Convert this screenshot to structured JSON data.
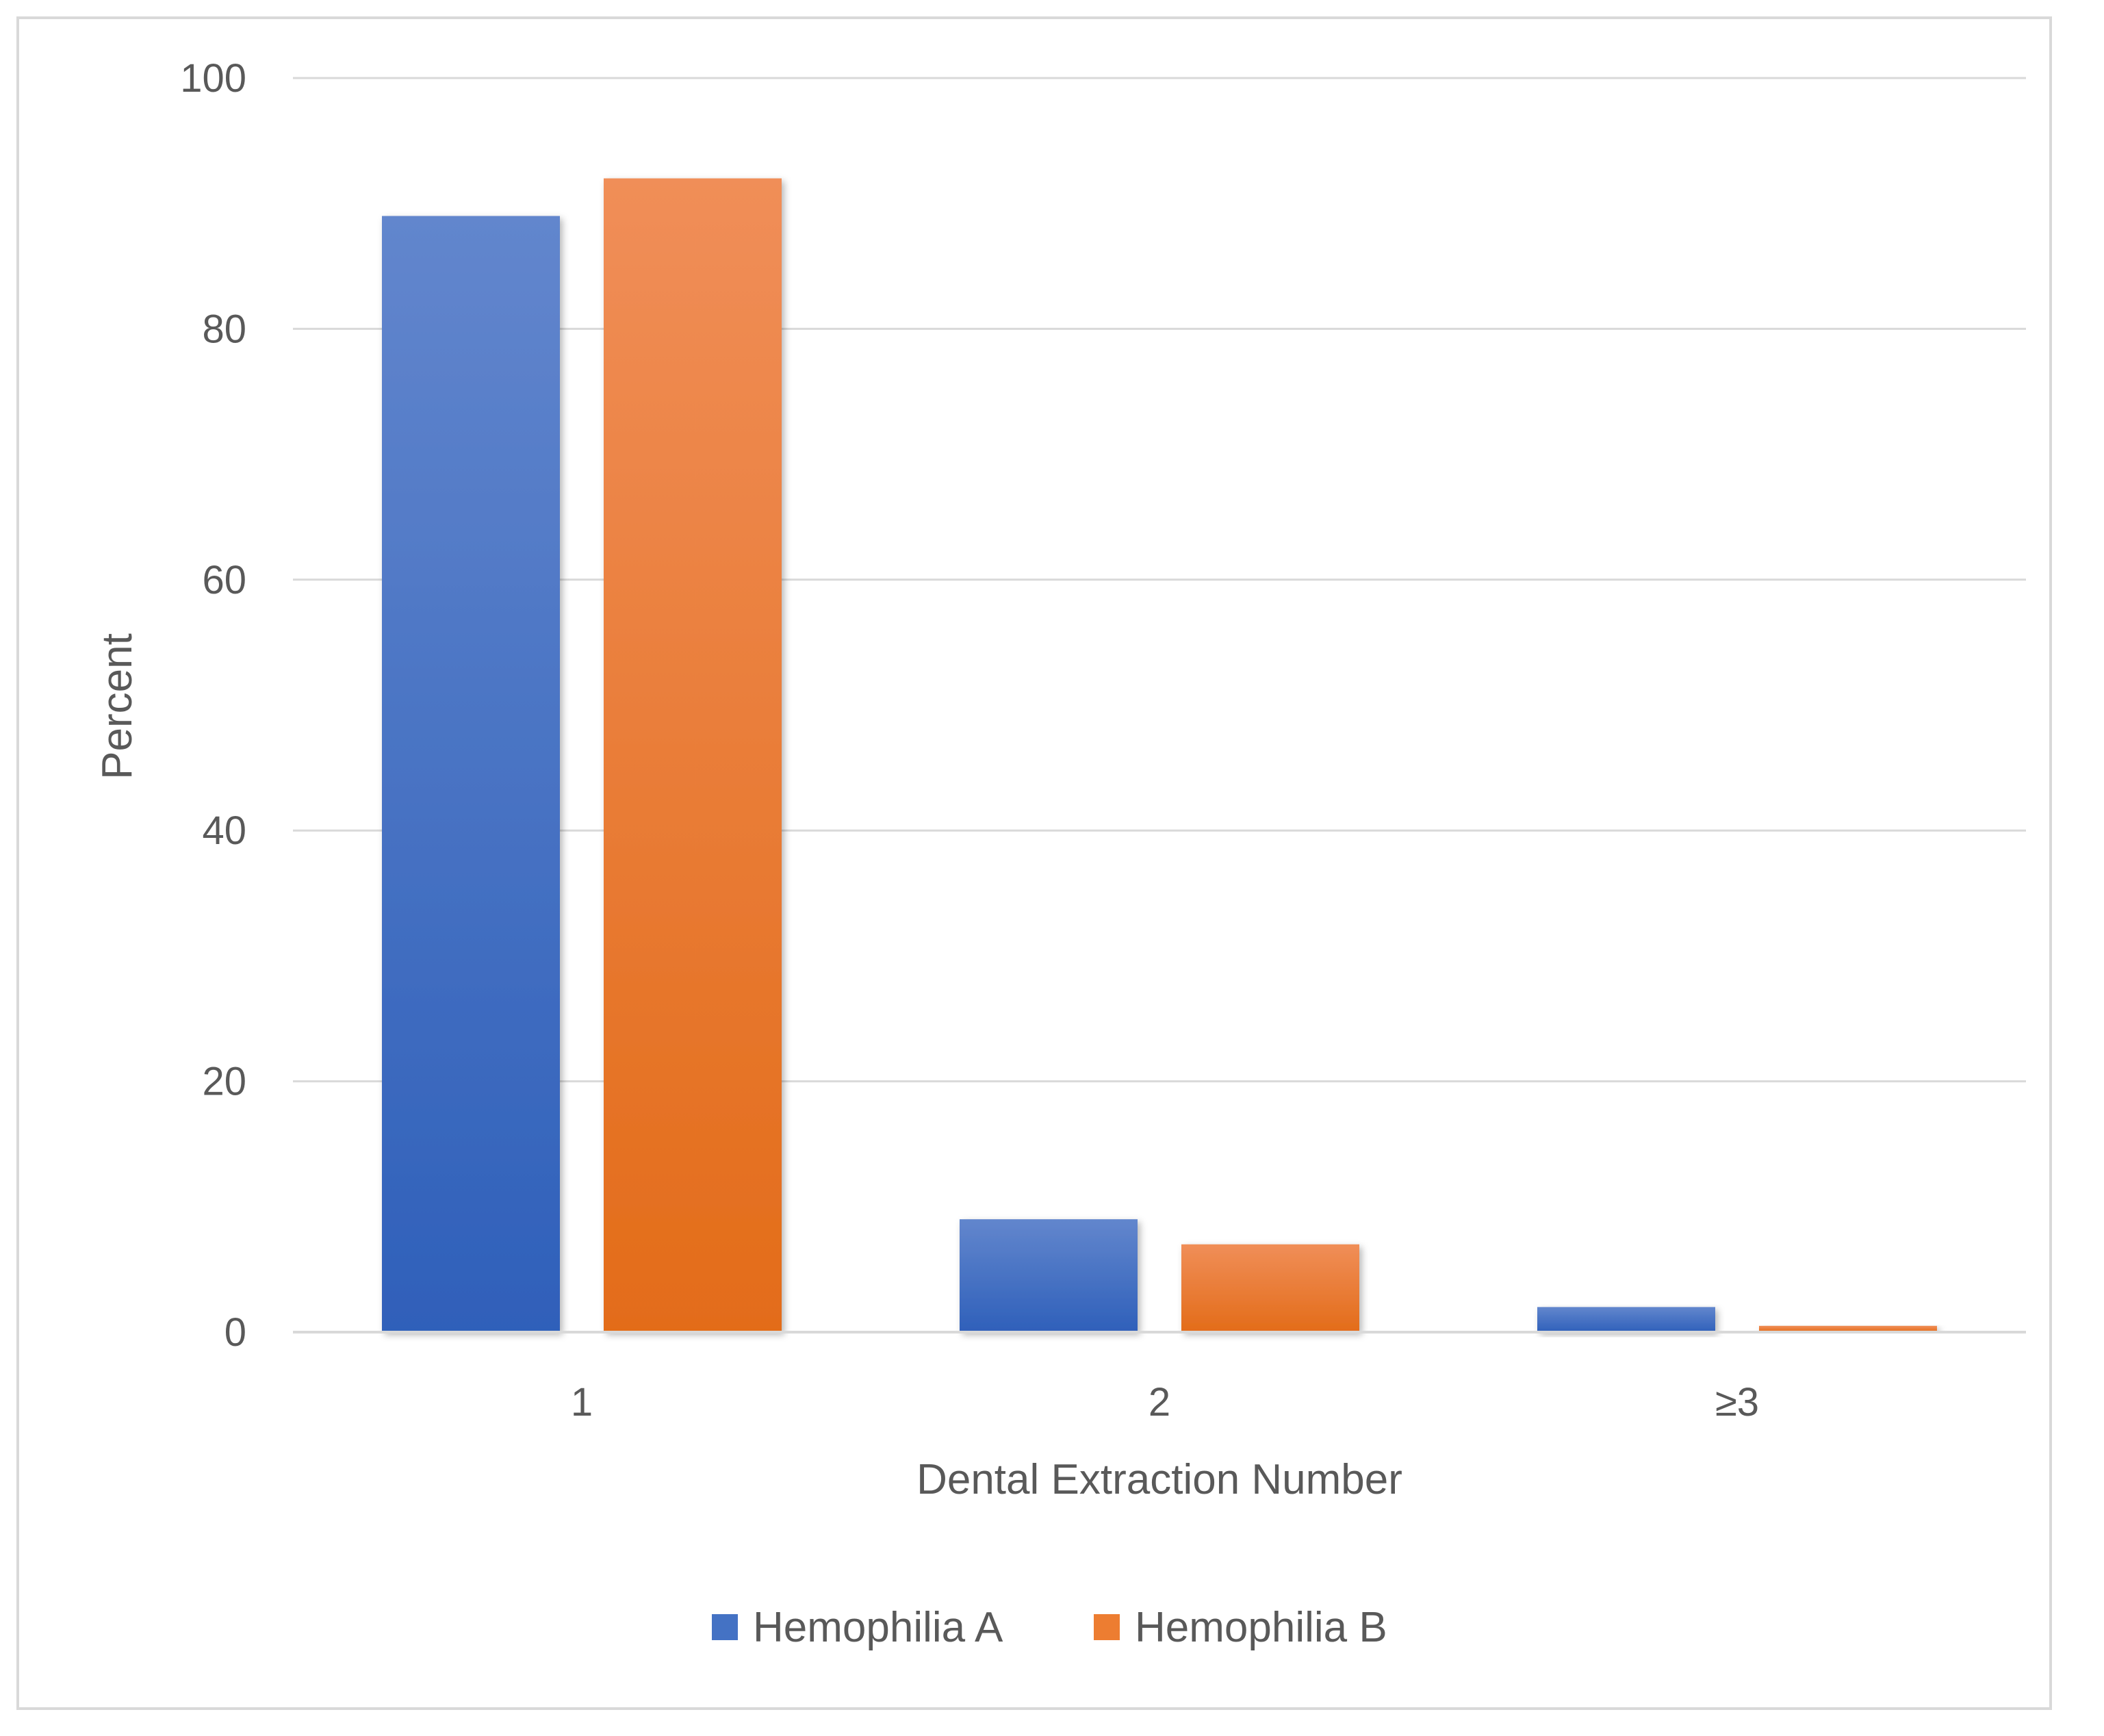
{
  "chart_data": {
    "type": "bar",
    "categories": [
      "1",
      "2",
      "≥3"
    ],
    "series": [
      {
        "name": "Hemophilia A",
        "values": [
          89,
          9,
          2
        ],
        "color": "#4472C4"
      },
      {
        "name": "Hemophilia B",
        "values": [
          92,
          7,
          0.5
        ],
        "color": "#ED7D31"
      }
    ],
    "xlabel": "Dental Extraction Number",
    "ylabel": "Percent",
    "ylim": [
      0,
      100
    ],
    "yticks": [
      "0",
      "20",
      "40",
      "60",
      "80",
      "100"
    ],
    "grid": true,
    "legend_position": "bottom",
    "colors": {
      "gridline": "#d9d9d9",
      "text": "#595959",
      "frame": "#d9d9d9"
    }
  }
}
